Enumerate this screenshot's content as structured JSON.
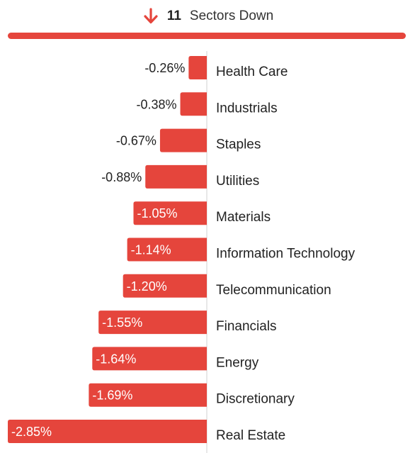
{
  "header": {
    "count": "11",
    "label": "Sectors Down",
    "icon": "arrow-down-icon"
  },
  "colors": {
    "negative": "#e5453c",
    "axis": "#d9d9d9",
    "text": "#222222",
    "inside_label": "#ffffff"
  },
  "chart_data": {
    "type": "bar",
    "orientation": "horizontal",
    "categories": [
      "Health Care",
      "Industrials",
      "Staples",
      "Utilities",
      "Materials",
      "Information Technology",
      "Telecommunication",
      "Financials",
      "Energy",
      "Discretionary",
      "Real Estate"
    ],
    "values": [
      -0.26,
      -0.38,
      -0.67,
      -0.88,
      -1.05,
      -1.14,
      -1.2,
      -1.55,
      -1.64,
      -1.69,
      -2.85
    ],
    "value_labels": [
      "-0.26%",
      "-0.38%",
      "-0.67%",
      "-0.88%",
      "-1.05%",
      "-1.14%",
      "-1.20%",
      "-1.55%",
      "-1.64%",
      "-1.69%",
      "-2.85%"
    ],
    "xlim": [
      -2.85,
      0
    ],
    "title": "",
    "xlabel": "",
    "ylabel": "",
    "grid": false,
    "legend": false
  }
}
